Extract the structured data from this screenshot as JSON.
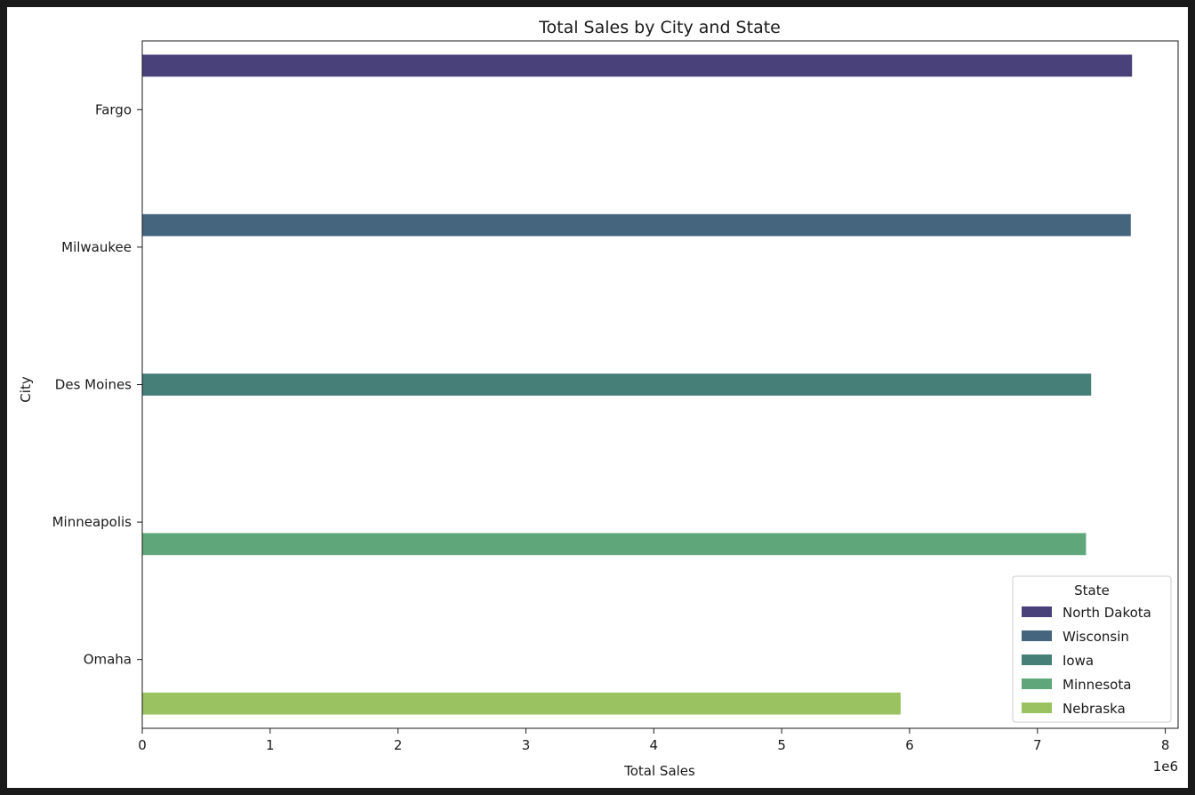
{
  "chart_data": {
    "type": "bar",
    "orientation": "horizontal",
    "title": "Total Sales by City and State",
    "xlabel": "Total Sales",
    "ylabel": "City",
    "x_scale_label": "1e6",
    "xlim": [
      0,
      8100000
    ],
    "x_ticks": [
      {
        "value": 0,
        "label": "0"
      },
      {
        "value": 1000000,
        "label": "1"
      },
      {
        "value": 2000000,
        "label": "2"
      },
      {
        "value": 3000000,
        "label": "3"
      },
      {
        "value": 4000000,
        "label": "4"
      },
      {
        "value": 5000000,
        "label": "5"
      },
      {
        "value": 6000000,
        "label": "6"
      },
      {
        "value": 7000000,
        "label": "7"
      },
      {
        "value": 8000000,
        "label": "8"
      }
    ],
    "categories": [
      "Fargo",
      "Milwaukee",
      "Des Moines",
      "Minneapolis",
      "Omaha"
    ],
    "grid": false,
    "legend": {
      "title": "State",
      "placement": "lower-right"
    },
    "series": [
      {
        "name": "North Dakota",
        "color": "#48417a",
        "values": [
          7740000,
          null,
          null,
          null,
          null
        ]
      },
      {
        "name": "Wisconsin",
        "color": "#45657f",
        "values": [
          null,
          7730000,
          null,
          null,
          null
        ]
      },
      {
        "name": "Iowa",
        "color": "#467e78",
        "values": [
          null,
          null,
          7420000,
          null,
          null
        ]
      },
      {
        "name": "Minnesota",
        "color": "#5fa77a",
        "values": [
          null,
          null,
          null,
          7380000,
          null
        ]
      },
      {
        "name": "Nebraska",
        "color": "#9ac260",
        "values": [
          null,
          null,
          null,
          null,
          5930000
        ]
      }
    ]
  }
}
